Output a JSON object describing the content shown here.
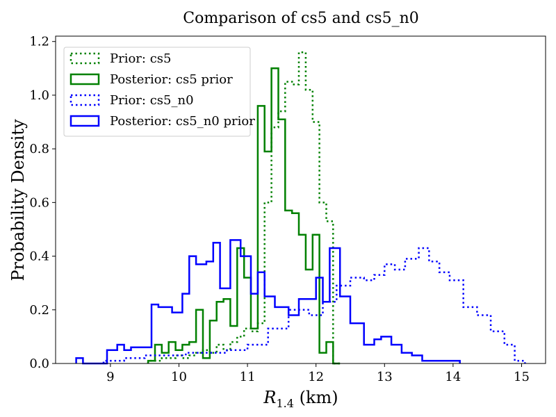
{
  "chart_data": {
    "type": "histogram-step",
    "title": "Comparison of cs5 and cs5_n0",
    "xlabel": {
      "base": "R",
      "sub": "1.4",
      "suffix": " (km)"
    },
    "ylabel": "Probability Density",
    "xlim": [
      8.2,
      15.35
    ],
    "ylim": [
      0,
      1.22
    ],
    "xticks": [
      9,
      10,
      11,
      12,
      13,
      14,
      15
    ],
    "yticks": [
      0.0,
      0.2,
      0.4,
      0.6,
      0.8,
      1.0,
      1.2
    ],
    "legend_position": "top-left",
    "grid": false,
    "series": [
      {
        "name": "Prior: cs5",
        "color": "#008000",
        "style": "dotted",
        "bin_edges": [
          9.55,
          9.65,
          9.75,
          9.85,
          9.95,
          10.05,
          10.15,
          10.25,
          10.35,
          10.45,
          10.55,
          10.65,
          10.75,
          10.85,
          10.95,
          11.05,
          11.15,
          11.25,
          11.35,
          11.45,
          11.55,
          11.65,
          11.75,
          11.85,
          11.95,
          12.05,
          12.15,
          12.25,
          12.35
        ],
        "values": [
          0.01,
          0.01,
          0.02,
          0.02,
          0.03,
          0.02,
          0.03,
          0.04,
          0.05,
          0.04,
          0.07,
          0.05,
          0.08,
          0.1,
          0.13,
          0.12,
          0.15,
          0.6,
          0.88,
          0.94,
          1.05,
          1.04,
          1.16,
          1.02,
          0.9,
          0.6,
          0.53,
          0.0
        ]
      },
      {
        "name": "Posterior: cs5 prior",
        "color": "#008000",
        "style": "solid",
        "bin_edges": [
          9.55,
          9.65,
          9.75,
          9.85,
          9.95,
          10.05,
          10.15,
          10.25,
          10.35,
          10.45,
          10.55,
          10.65,
          10.75,
          10.85,
          10.95,
          11.05,
          11.15,
          11.25,
          11.35,
          11.45,
          11.55,
          11.65,
          11.75,
          11.85,
          11.95,
          12.05,
          12.15,
          12.25,
          12.35
        ],
        "values": [
          0.01,
          0.07,
          0.04,
          0.08,
          0.05,
          0.07,
          0.08,
          0.2,
          0.02,
          0.16,
          0.23,
          0.24,
          0.14,
          0.43,
          0.32,
          0.13,
          0.96,
          0.79,
          1.1,
          0.91,
          0.57,
          0.56,
          0.48,
          0.35,
          0.48,
          0.04,
          0.08,
          0.0
        ]
      },
      {
        "name": "Prior: cs5_n0",
        "color": "#0000ff",
        "style": "dotted",
        "bin_edges": [
          8.9,
          9.2,
          9.5,
          9.8,
          10.1,
          10.4,
          10.7,
          11.0,
          11.3,
          11.6,
          11.9,
          12.1,
          12.3,
          12.5,
          12.7,
          12.85,
          13.0,
          13.15,
          13.3,
          13.5,
          13.65,
          13.8,
          13.95,
          14.15,
          14.35,
          14.55,
          14.75,
          14.9,
          15.05
        ],
        "values": [
          0.01,
          0.02,
          0.03,
          0.03,
          0.04,
          0.04,
          0.05,
          0.07,
          0.13,
          0.2,
          0.18,
          0.23,
          0.29,
          0.32,
          0.31,
          0.33,
          0.37,
          0.35,
          0.39,
          0.43,
          0.38,
          0.34,
          0.31,
          0.21,
          0.18,
          0.12,
          0.07,
          0.01
        ]
      },
      {
        "name": "Posterior: cs5_n0 prior",
        "color": "#0000ff",
        "style": "solid",
        "bin_edges": [
          8.5,
          8.6,
          8.7,
          8.95,
          9.1,
          9.2,
          9.3,
          9.4,
          9.6,
          9.7,
          9.9,
          10.05,
          10.15,
          10.25,
          10.4,
          10.5,
          10.6,
          10.75,
          10.9,
          11.05,
          11.15,
          11.25,
          11.4,
          11.5,
          11.6,
          11.75,
          11.85,
          12.0,
          12.1,
          12.2,
          12.35,
          12.5,
          12.7,
          12.85,
          12.95,
          13.1,
          13.25,
          13.4,
          13.55,
          13.7,
          13.85,
          14.0,
          14.1
        ],
        "values": [
          0.02,
          0.0,
          0.0,
          0.05,
          0.07,
          0.05,
          0.06,
          0.06,
          0.22,
          0.21,
          0.19,
          0.26,
          0.4,
          0.37,
          0.38,
          0.45,
          0.28,
          0.46,
          0.4,
          0.26,
          0.34,
          0.25,
          0.21,
          0.21,
          0.18,
          0.24,
          0.24,
          0.32,
          0.23,
          0.43,
          0.25,
          0.15,
          0.07,
          0.09,
          0.1,
          0.07,
          0.04,
          0.03,
          0.01,
          0.01,
          0.01,
          0.01
        ]
      }
    ]
  }
}
